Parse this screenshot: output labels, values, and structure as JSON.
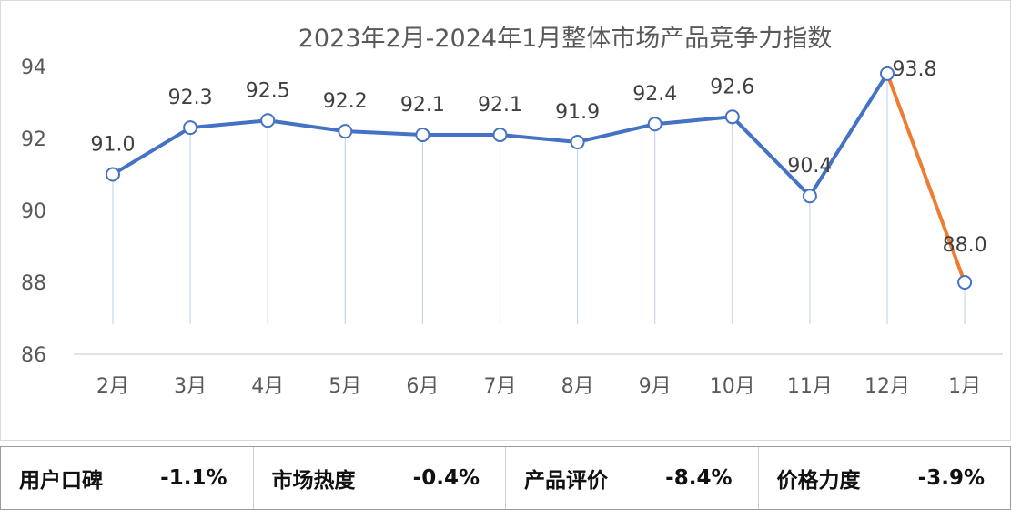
{
  "chart_data": {
    "type": "line",
    "title": "2023年2月-2024年1月整体市场产品竞争力指数",
    "categories": [
      "2月",
      "3月",
      "4月",
      "5月",
      "6月",
      "7月",
      "8月",
      "9月",
      "10月",
      "11月",
      "12月",
      "1月"
    ],
    "series": [
      {
        "values": [
          91.0,
          92.3,
          92.5,
          92.2,
          92.1,
          92.1,
          91.9,
          92.4,
          92.6,
          90.4,
          93.8,
          88.0
        ]
      }
    ],
    "data_labels": [
      "91.0",
      "92.3",
      "92.5",
      "92.2",
      "92.1",
      "92.1",
      "91.9",
      "92.4",
      "92.6",
      "90.4",
      "93.8",
      "88.0"
    ],
    "ylim": [
      86,
      94
    ],
    "yticks": [
      86,
      88,
      90,
      92,
      94
    ],
    "grid": false,
    "colors": {
      "line": "#4472c4",
      "last_segment": "#ed7d31",
      "marker_fill": "#ffffff",
      "drop_line": "#c9d6ea"
    }
  },
  "metrics": [
    {
      "label": "用户口碑",
      "value": "-1.1%"
    },
    {
      "label": "市场热度",
      "value": "-0.4%"
    },
    {
      "label": "产品评价",
      "value": "-8.4%"
    },
    {
      "label": "价格力度",
      "value": "-3.9%"
    }
  ]
}
